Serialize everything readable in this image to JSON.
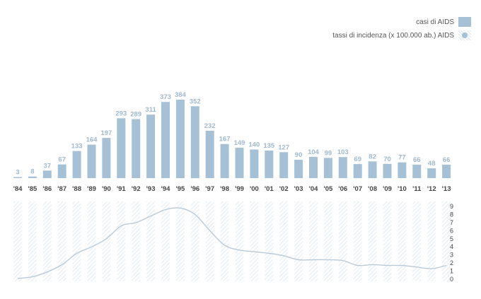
{
  "legend": {
    "cases_label": "casi di AIDS",
    "rates_label": "tassi di incidenza (x 100.000 ab.) AIDS"
  },
  "colors": {
    "bar": "#a6c1d6",
    "bar_label": "#9fb9ce",
    "line": "#b9cbd9",
    "hatch": "#dbe6ef",
    "axis_text": "#444444"
  },
  "chart_data": [
    {
      "type": "bar",
      "series_name": "casi di AIDS",
      "categories": [
        "'84",
        "'85",
        "'86",
        "'87",
        "'88",
        "'89",
        "'90",
        "'91",
        "'92",
        "'93",
        "'94",
        "'95",
        "'96",
        "'97",
        "'98",
        "'99",
        "'00",
        "'01",
        "'02",
        "'03",
        "'04",
        "'05",
        "'06",
        "'07",
        "'08",
        "'09",
        "'10",
        "'11",
        "'12",
        "'13"
      ],
      "values": [
        3,
        8,
        37,
        67,
        133,
        164,
        197,
        293,
        289,
        311,
        373,
        384,
        352,
        232,
        167,
        149,
        140,
        135,
        127,
        90,
        104,
        99,
        103,
        69,
        82,
        70,
        77,
        66,
        48,
        66
      ]
    },
    {
      "type": "line",
      "series_name": "tassi di incidenza (x 100.000 ab.) AIDS",
      "categories": [
        "'84",
        "'85",
        "'86",
        "'87",
        "'88",
        "'89",
        "'90",
        "'91",
        "'92",
        "'93",
        "'94",
        "'95",
        "'96",
        "'97",
        "'98",
        "'99",
        "'00",
        "'01",
        "'02",
        "'03",
        "'04",
        "'05",
        "'06",
        "'07",
        "'08",
        "'09",
        "'10",
        "'11",
        "'12",
        "'13"
      ],
      "values": [
        0.1,
        0.3,
        0.9,
        1.8,
        3.2,
        4.0,
        5.0,
        6.6,
        7.0,
        7.8,
        8.6,
        8.8,
        8.0,
        6.0,
        4.2,
        3.6,
        3.4,
        3.2,
        2.9,
        2.4,
        2.4,
        2.4,
        2.3,
        1.7,
        1.8,
        1.7,
        1.7,
        1.5,
        1.3,
        1.7
      ],
      "yticks": [
        0,
        1,
        2,
        3,
        4,
        5,
        6,
        7,
        8,
        9
      ],
      "ylim": [
        0,
        9
      ]
    }
  ]
}
